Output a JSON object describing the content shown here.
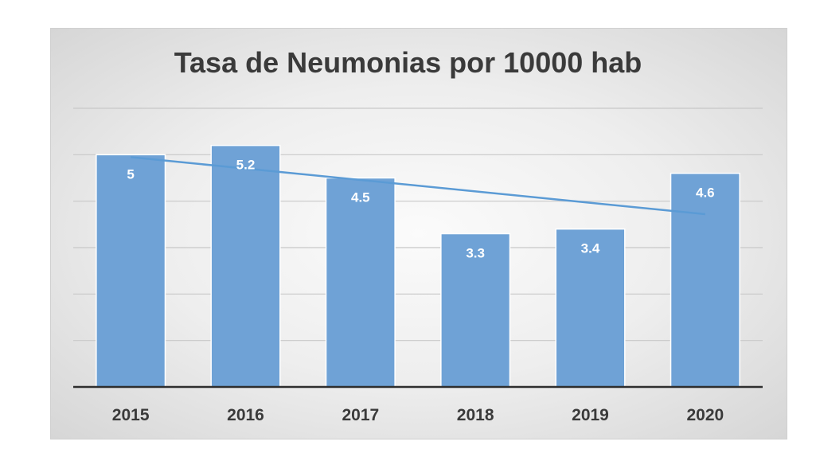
{
  "chart_data": {
    "type": "bar",
    "title": "Tasa de Neumonias por 10000 hab",
    "categories": [
      "2015",
      "2016",
      "2017",
      "2018",
      "2019",
      "2020"
    ],
    "values": [
      5,
      5.2,
      4.5,
      3.3,
      3.4,
      4.6
    ],
    "data_labels": [
      "5",
      "5.2",
      "4.5",
      "3.3",
      "3.4",
      "4.6"
    ],
    "ylim": [
      0,
      6
    ],
    "grid": true,
    "trendline": "linear",
    "bar_color": "#6fa2d6",
    "trendline_color": "#5b9bd5",
    "gridline_color": "#c8c8c8"
  }
}
